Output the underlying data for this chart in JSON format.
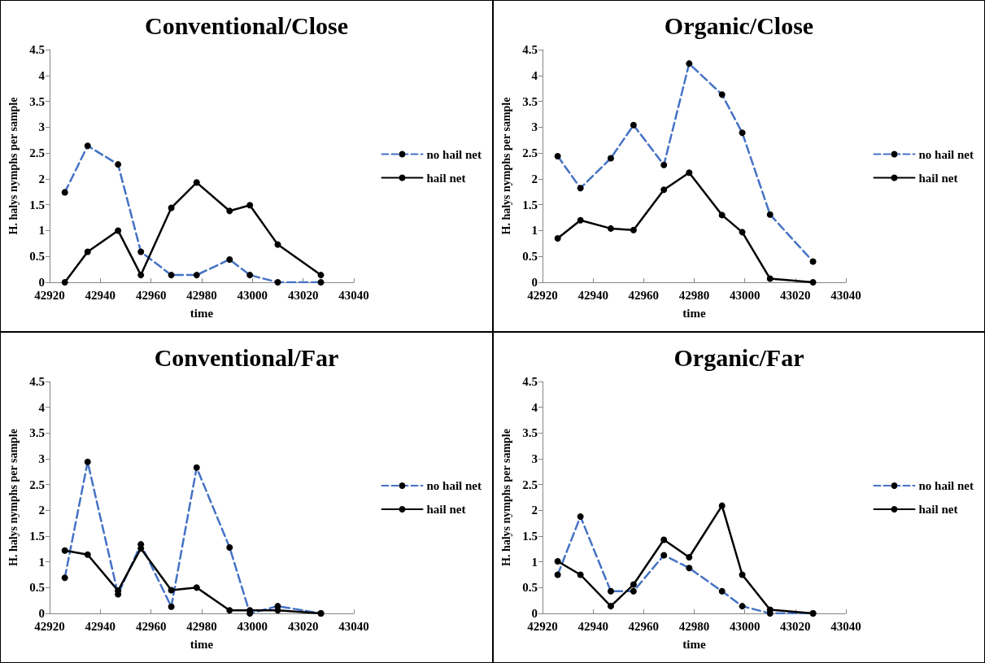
{
  "chart_data": [
    {
      "type": "line",
      "title": "Conventional/Close",
      "xlabel": "time",
      "ylabel": "H. halys nymphs per sample",
      "x": [
        42926,
        42935,
        42947,
        42956,
        42968,
        42978,
        42991,
        42999,
        43010,
        43027
      ],
      "xlim": [
        42920,
        43040
      ],
      "xticks": [
        42920,
        42940,
        42960,
        42980,
        43000,
        43020,
        43040
      ],
      "ylim": [
        0,
        4.5
      ],
      "yticks": [
        0,
        0.5,
        1,
        1.5,
        2,
        2.5,
        3,
        3.5,
        4,
        4.5
      ],
      "grid": false,
      "legend": "right",
      "marker": "circle",
      "series": [
        {
          "name": "no hail net",
          "color": "#4472c4",
          "line_style": "dashed",
          "values": [
            1.74,
            2.64,
            2.28,
            0.59,
            0.14,
            0.14,
            0.44,
            0.14,
            0,
            0
          ]
        },
        {
          "name": "hail net",
          "color": "#000000",
          "line_style": "solid",
          "values": [
            0,
            0.59,
            1.0,
            0.14,
            1.44,
            1.93,
            1.38,
            1.49,
            0.73,
            0.14
          ]
        }
      ]
    },
    {
      "type": "line",
      "title": "Organic/Close",
      "xlabel": "time",
      "ylabel": "H. halys nymphs per sample",
      "x": [
        42926,
        42935,
        42947,
        42956,
        42968,
        42978,
        42991,
        42999,
        43010,
        43027
      ],
      "xlim": [
        42920,
        43040
      ],
      "xticks": [
        42920,
        42940,
        42960,
        42980,
        43000,
        43020,
        43040
      ],
      "ylim": [
        0,
        4.5
      ],
      "yticks": [
        0,
        0.5,
        1,
        1.5,
        2,
        2.5,
        3,
        3.5,
        4,
        4.5
      ],
      "grid": false,
      "legend": "right",
      "marker": "circle",
      "series": [
        {
          "name": "no hail net",
          "color": "#4472c4",
          "line_style": "dashed",
          "values": [
            2.44,
            1.82,
            2.4,
            3.04,
            2.27,
            4.23,
            3.63,
            2.89,
            1.31,
            0.4
          ]
        },
        {
          "name": "hail net",
          "color": "#000000",
          "line_style": "solid",
          "values": [
            0.85,
            1.2,
            1.04,
            1.01,
            1.79,
            2.12,
            1.3,
            0.97,
            0.07,
            0
          ]
        }
      ]
    },
    {
      "type": "line",
      "title": "Conventional/Far",
      "xlabel": "time",
      "ylabel": "H. halys nymphs per sample",
      "x": [
        42926,
        42935,
        42947,
        42956,
        42968,
        42978,
        42991,
        42999,
        43010,
        43027
      ],
      "xlim": [
        42920,
        43040
      ],
      "xticks": [
        42920,
        42940,
        42960,
        42980,
        43000,
        43020,
        43040
      ],
      "ylim": [
        0,
        4.5
      ],
      "yticks": [
        0,
        0.5,
        1,
        1.5,
        2,
        2.5,
        3,
        3.5,
        4,
        4.5
      ],
      "grid": false,
      "legend": "right",
      "marker": "circle",
      "series": [
        {
          "name": "no hail net",
          "color": "#4472c4",
          "line_style": "dashed",
          "values": [
            0.69,
            2.94,
            0.37,
            1.34,
            0.13,
            2.83,
            1.28,
            0,
            0.14,
            0
          ]
        },
        {
          "name": "hail net",
          "color": "#000000",
          "line_style": "solid",
          "values": [
            1.22,
            1.14,
            0.44,
            1.26,
            0.45,
            0.5,
            0.06,
            0.06,
            0.06,
            0
          ]
        }
      ]
    },
    {
      "type": "line",
      "title": "Organic/Far",
      "xlabel": "time",
      "ylabel": "H. halys nymphs per sample",
      "x": [
        42926,
        42935,
        42947,
        42956,
        42968,
        42978,
        42991,
        42999,
        43010,
        43027
      ],
      "xlim": [
        42920,
        43040
      ],
      "xticks": [
        42920,
        42940,
        42960,
        42980,
        43000,
        43020,
        43040
      ],
      "ylim": [
        0,
        4.5
      ],
      "yticks": [
        0,
        0.5,
        1,
        1.5,
        2,
        2.5,
        3,
        3.5,
        4,
        4.5
      ],
      "grid": false,
      "legend": "right",
      "marker": "circle",
      "series": [
        {
          "name": "no hail net",
          "color": "#4472c4",
          "line_style": "dashed",
          "values": [
            0.75,
            1.88,
            0.43,
            0.43,
            1.13,
            0.88,
            0.43,
            0.14,
            0,
            0
          ]
        },
        {
          "name": "hail net",
          "color": "#000000",
          "line_style": "solid",
          "values": [
            1.01,
            0.75,
            0.14,
            0.56,
            1.43,
            1.09,
            2.09,
            0.75,
            0.07,
            0
          ]
        }
      ]
    }
  ]
}
